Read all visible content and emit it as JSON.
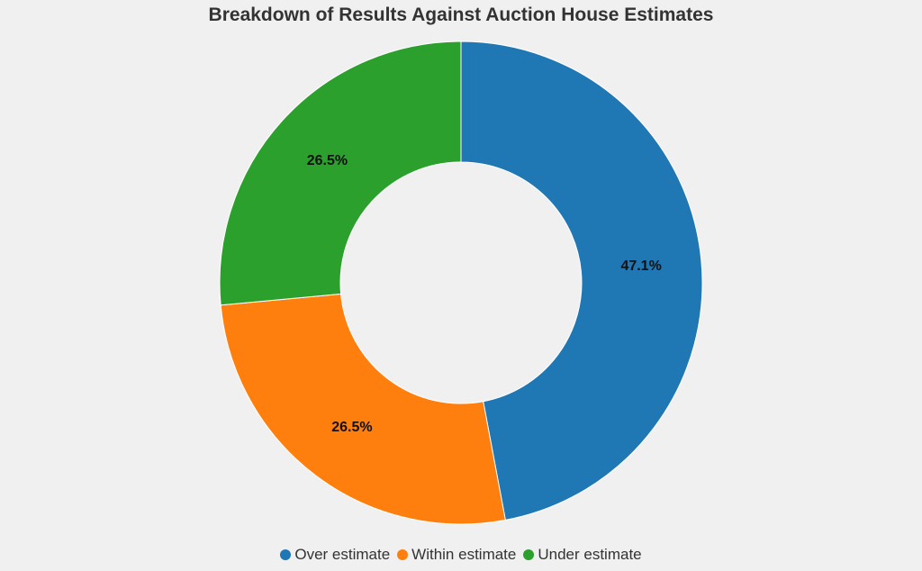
{
  "chart_data": {
    "type": "pie",
    "variant": "donut",
    "title": "Breakdown of Results Against Auction House Estimates",
    "slices": [
      {
        "label": "Over estimate",
        "value": 47.1,
        "display": "47.1%",
        "color": "#1f77b4"
      },
      {
        "label": "Within estimate",
        "value": 26.5,
        "display": "26.5%",
        "color": "#ff7f0e"
      },
      {
        "label": "Under estimate",
        "value": 26.5,
        "display": "26.5%",
        "color": "#2ca02c"
      }
    ],
    "start_angle_deg": 0,
    "direction": "clockwise",
    "legend_position": "bottom"
  }
}
